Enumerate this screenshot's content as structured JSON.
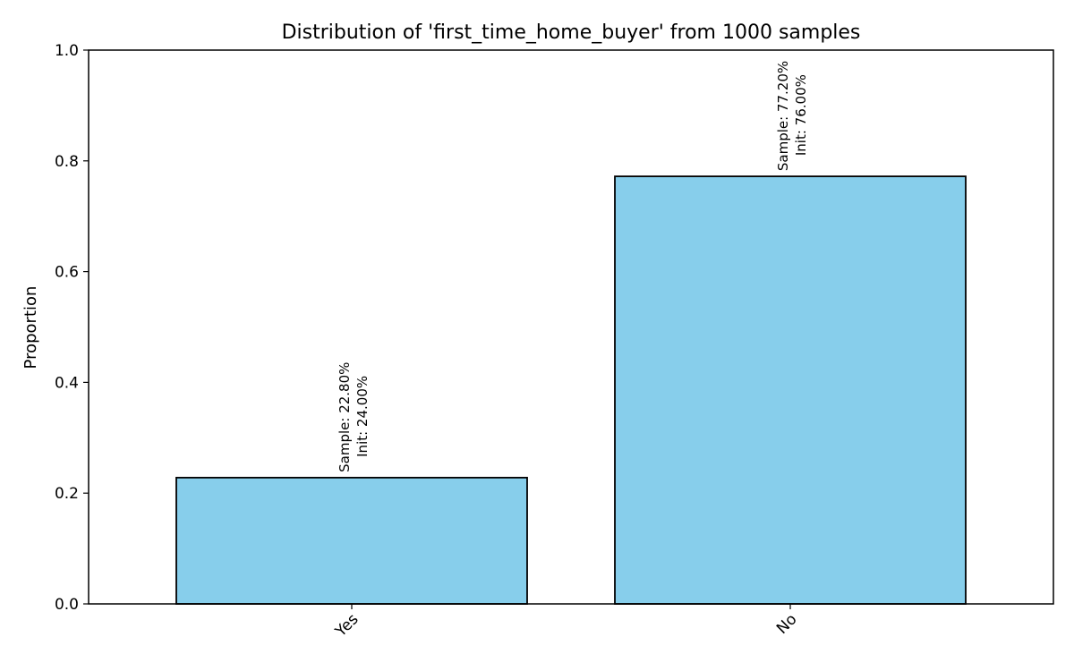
{
  "chart_data": {
    "type": "bar",
    "title": "Distribution of 'first_time_home_buyer' from 1000 samples",
    "xlabel": "",
    "ylabel": "Proportion",
    "categories": [
      "Yes",
      "No"
    ],
    "values": [
      0.228,
      0.772
    ],
    "data_labels": [
      [
        "Sample: 22.80%",
        "Init: 24.00%"
      ],
      [
        "Sample: 77.20%",
        "Init: 76.00%"
      ]
    ],
    "ylim": [
      0,
      1.0
    ],
    "yticks": [
      "0.0",
      "0.2",
      "0.4",
      "0.6",
      "0.8",
      "1.0"
    ],
    "grid": false,
    "bar_color": "#87CEEB",
    "edge_color": "#000000"
  }
}
